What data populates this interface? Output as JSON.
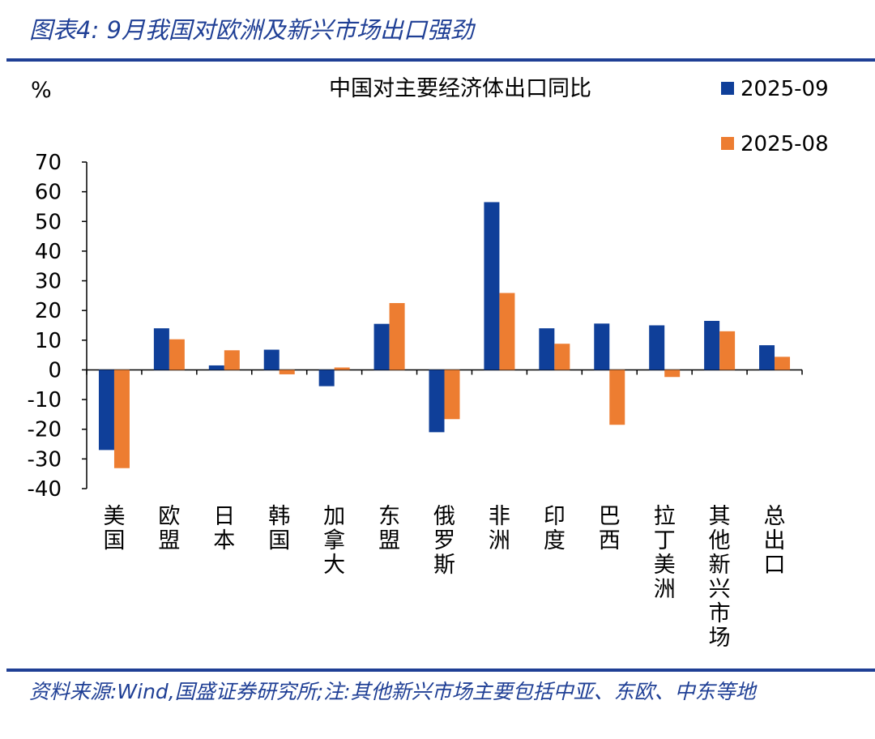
{
  "figure": {
    "header": "图表4:  9月我国对欧洲及新兴市场出口强劲",
    "source": "资料来源:Wind,国盛证券研究所;注:其他新兴市场主要包括中亚、东欧、中东等地"
  },
  "colors": {
    "accent": "#1f3f95",
    "series_2025_09": "#0f3f99",
    "series_2025_08": "#ed7d31"
  },
  "chart_data": {
    "type": "bar",
    "title": "中国对主要经济体出口同比",
    "unit_label": "%",
    "categories": [
      "美国",
      "欧盟",
      "日本",
      "韩国",
      "加拿大",
      "东盟",
      "俄罗斯",
      "非洲",
      "印度",
      "巴西",
      "拉丁美洲",
      "其他新兴市场",
      "总出口"
    ],
    "series": [
      {
        "name": "2025-09",
        "color": "#0f3f99",
        "values": [
          -27.0,
          14.0,
          1.5,
          6.8,
          -5.5,
          15.5,
          -21.0,
          56.5,
          14.0,
          15.6,
          15.0,
          16.5,
          8.3
        ]
      },
      {
        "name": "2025-08",
        "color": "#ed7d31",
        "values": [
          -33.1,
          10.3,
          6.6,
          -1.5,
          0.8,
          22.5,
          -16.6,
          25.9,
          8.8,
          -18.5,
          -2.4,
          13.0,
          4.4
        ]
      }
    ],
    "ylim": [
      -40,
      70
    ],
    "yticks": [
      70,
      60,
      50,
      40,
      30,
      20,
      10,
      0,
      -10,
      -20,
      -30,
      -40
    ],
    "legend": "top-right",
    "grid": false
  }
}
